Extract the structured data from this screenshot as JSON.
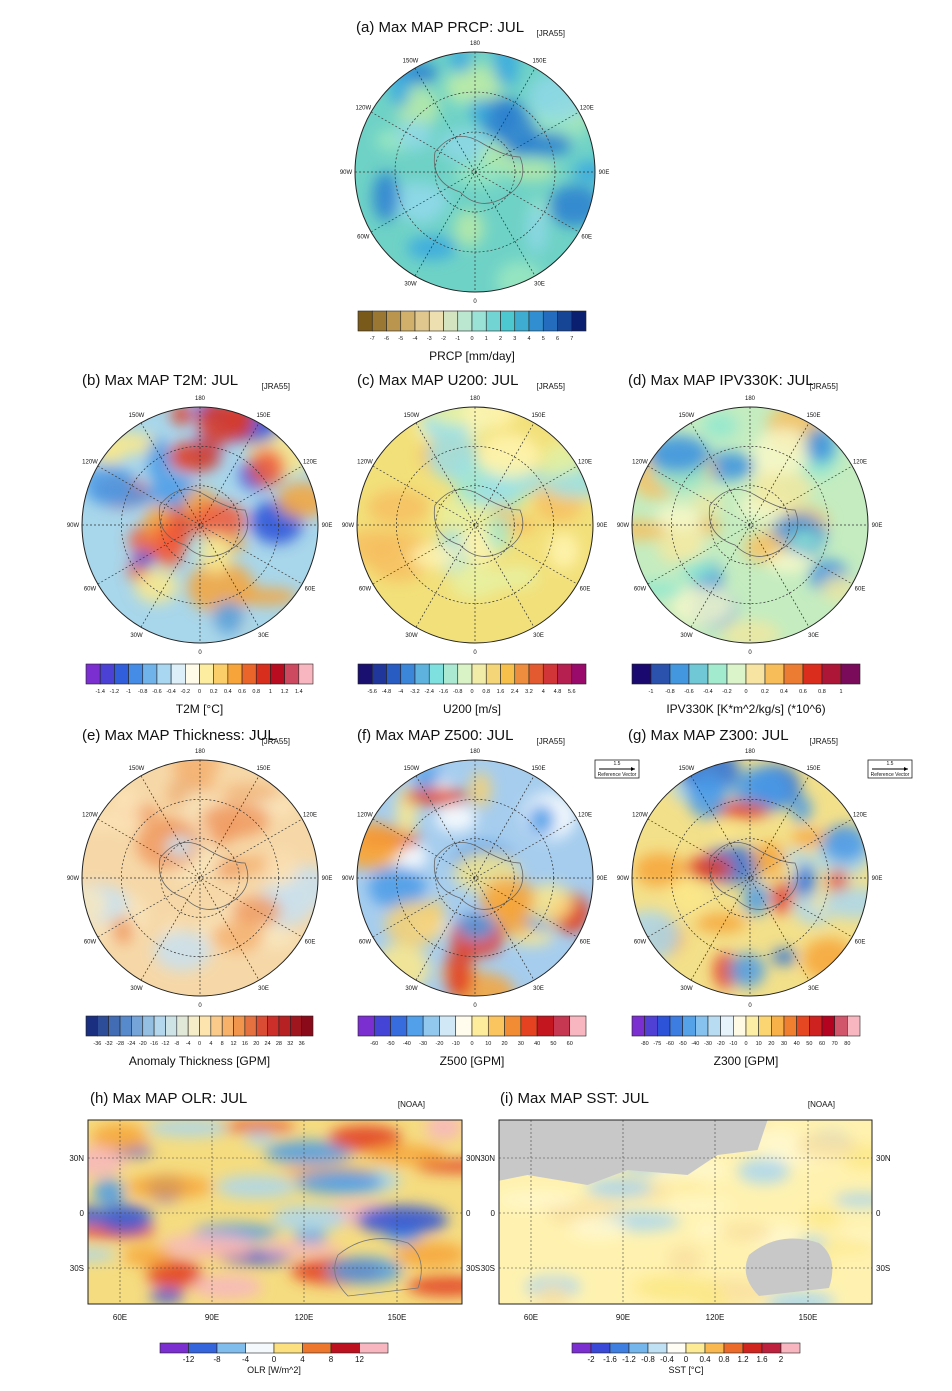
{
  "panels": [
    {
      "title": "(a) Max MAP PRCP: JUL",
      "source": "[JRA55]",
      "lon_labels": [
        "180",
        "150E",
        "120E",
        "90E",
        "60E",
        "30E",
        "0",
        "30W",
        "60W",
        "90W",
        "120W",
        "150W"
      ],
      "colorbar": {
        "ticks": [
          "-7",
          "-6",
          "-5",
          "-4",
          "-3",
          "-2",
          "-1",
          "0",
          "1",
          "2",
          "3",
          "4",
          "5",
          "6",
          "7"
        ],
        "title": "PRCP [mm/day]"
      }
    },
    {
      "title": "(b) Max MAP T2M: JUL",
      "source": "[JRA55]",
      "lon_labels": [
        "180",
        "150E",
        "120E",
        "90E",
        "60E",
        "30E",
        "0",
        "30W",
        "60W",
        "90W",
        "120W",
        "150W"
      ],
      "colorbar": {
        "ticks": [
          "-1.4",
          "-1.2",
          "-1",
          "-0.8",
          "-0.6",
          "-0.4",
          "-0.2",
          "0",
          "0.2",
          "0.4",
          "0.6",
          "0.8",
          "1",
          "1.2",
          "1.4"
        ],
        "title": "T2M [°C]"
      }
    },
    {
      "title": "(c) Max MAP U200: JUL",
      "source": "[JRA55]",
      "lon_labels": [
        "180",
        "150E",
        "120E",
        "90E",
        "60E",
        "30E",
        "0",
        "30W",
        "60W",
        "90W",
        "120W",
        "150W"
      ],
      "colorbar": {
        "ticks": [
          "-5.6",
          "-4.8",
          "-4",
          "-3.2",
          "-2.4",
          "-1.6",
          "-0.8",
          "0",
          "0.8",
          "1.6",
          "2.4",
          "3.2",
          "4",
          "4.8",
          "5.6"
        ],
        "title": "U200 [m/s]"
      }
    },
    {
      "title": "(d) Max MAP IPV330K: JUL",
      "source": "[JRA55]",
      "lon_labels": [
        "180",
        "150E",
        "120E",
        "90E",
        "60E",
        "30E",
        "0",
        "30W",
        "60W",
        "90W",
        "120W",
        "150W"
      ],
      "colorbar": {
        "ticks": [
          "-1",
          "-0.8",
          "-0.6",
          "-0.4",
          "-0.2",
          "0",
          "0.2",
          "0.4",
          "0.6",
          "0.8",
          "1"
        ],
        "title": "IPV330K [K*m^2/kg/s] (*10^6)"
      }
    },
    {
      "title": "(e) Max MAP Thickness: JUL",
      "source": "[JRA55]",
      "lon_labels": [
        "180",
        "150E",
        "120E",
        "90E",
        "60E",
        "30E",
        "0",
        "30W",
        "60W",
        "90W",
        "120W",
        "150W"
      ],
      "colorbar": {
        "ticks": [
          "-36",
          "-32",
          "-28",
          "-24",
          "-20",
          "-16",
          "-12",
          "-8",
          "-4",
          "0",
          "4",
          "8",
          "12",
          "16",
          "20",
          "24",
          "28",
          "32",
          "36"
        ],
        "title": "Anomaly Thickness [GPM]"
      }
    },
    {
      "title": "(f) Max MAP Z500: JUL",
      "source": "[JRA55]",
      "reference_vector": {
        "magnitude": "1.5",
        "label": "Reference Vector"
      },
      "lon_labels": [
        "180",
        "150E",
        "120E",
        "90E",
        "60E",
        "30E",
        "0",
        "30W",
        "60W",
        "90W",
        "120W",
        "150W"
      ],
      "colorbar": {
        "ticks": [
          "-60",
          "-50",
          "-40",
          "-30",
          "-20",
          "-10",
          "0",
          "10",
          "20",
          "30",
          "40",
          "50",
          "60"
        ],
        "title": "Z500 [GPM]"
      }
    },
    {
      "title": "(g) Max MAP Z300: JUL",
      "source": "[JRA55]",
      "reference_vector": {
        "magnitude": "1.5",
        "label": "Reference Vector"
      },
      "lon_labels": [
        "180",
        "150E",
        "120E",
        "90E",
        "60E",
        "30E",
        "0",
        "30W",
        "60W",
        "90W",
        "120W",
        "150W"
      ],
      "colorbar": {
        "ticks": [
          "-80",
          "-75",
          "-60",
          "-50",
          "-40",
          "-30",
          "-20",
          "-10",
          "0",
          "10",
          "20",
          "30",
          "40",
          "50",
          "60",
          "70",
          "80"
        ],
        "title": "Z300 [GPM]"
      }
    },
    {
      "title": "(h) Max MAP OLR: JUL",
      "source": "[NOAA]",
      "lat_labels": [
        "30N",
        "0",
        "30S"
      ],
      "lon_labels": [
        "60E",
        "90E",
        "120E",
        "150E"
      ],
      "colorbar": {
        "ticks": [
          "-12",
          "-8",
          "-4",
          "0",
          "4",
          "8",
          "12"
        ],
        "title": "OLR [W/m^2]"
      }
    },
    {
      "title": "(i) Max MAP SST: JUL",
      "source": "[NOAA]",
      "lat_labels": [
        "30N",
        "0",
        "30S"
      ],
      "lon_labels": [
        "60E",
        "90E",
        "120E",
        "150E"
      ],
      "colorbar": {
        "ticks": [
          "-2",
          "-1.6",
          "-1.2",
          "-0.8",
          "-0.4",
          "0",
          "0.4",
          "0.8",
          "1.2",
          "1.6",
          "2"
        ],
        "title": "SST [°C]"
      }
    }
  ]
}
